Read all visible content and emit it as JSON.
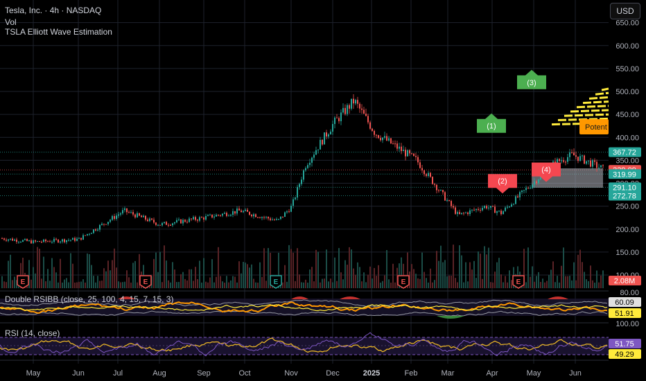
{
  "header": {
    "symbol_line": "Tesla, Inc. · 4h · NASDAQ",
    "vol_label": "Vol",
    "indicator_label": "TSLA Elliott Wave Estimation",
    "currency_button": "USD"
  },
  "colors": {
    "background": "#000000",
    "up": "#26a69a",
    "down": "#ef5350",
    "wave_green": "#4caf50",
    "wave_red": "#f44750",
    "orange": "#ff9800",
    "yellow": "#ffeb3b",
    "rsi_line": "#e6b325",
    "rsi_band": "#7e57c2"
  },
  "chart_data": [
    {
      "type": "candlestick",
      "title": "Tesla, Inc. · 4h · NASDAQ",
      "x_tick_labels": [
        "May",
        "Jun",
        "Jul",
        "Aug",
        "Sep",
        "Oct",
        "Nov",
        "Dec",
        "2025",
        "Feb",
        "Mar",
        "Apr",
        "May",
        "Jun"
      ],
      "y_tick_labels": [
        "100.00",
        "150.00",
        "200.00",
        "250.00",
        "300.00",
        "350.00",
        "400.00",
        "450.00",
        "500.00",
        "550.00",
        "600.00",
        "650.00"
      ],
      "ylim": [
        100,
        660
      ],
      "approx_close_path": [
        {
          "x": "Apr",
          "y": 180
        },
        {
          "x": "May",
          "y": 172
        },
        {
          "x": "Jun",
          "y": 178
        },
        {
          "x": "Jul",
          "y": 240
        },
        {
          "x": "Aug",
          "y": 210
        },
        {
          "x": "Sep",
          "y": 225
        },
        {
          "x": "Oct",
          "y": 240
        },
        {
          "x": "Oct",
          "y": 218
        },
        {
          "x": "Nov",
          "y": 250
        },
        {
          "x": "Nov",
          "y": 340
        },
        {
          "x": "Dec",
          "y": 430
        },
        {
          "x": "Dec",
          "y": 480
        },
        {
          "x": "2025",
          "y": 410
        },
        {
          "x": "Feb",
          "y": 350
        },
        {
          "x": "Mar",
          "y": 230
        },
        {
          "x": "Apr",
          "y": 250
        },
        {
          "x": "Apr",
          "y": 235
        },
        {
          "x": "May",
          "y": 290
        },
        {
          "x": "May",
          "y": 345
        },
        {
          "x": "Jun",
          "y": 362
        },
        {
          "x": "Jun",
          "y": 325
        }
      ],
      "price_level_lines": [
        {
          "label": "367.72",
          "value": 367.72,
          "color": "#26a69a",
          "style": "dotted"
        },
        {
          "label": "329.09",
          "value": 329.09,
          "color": "#ef5350",
          "style": "dotted"
        },
        {
          "label": "319.99",
          "value": 319.99,
          "color": "#26a69a",
          "style": "dotted"
        },
        {
          "label": "291.10",
          "value": 291.1,
          "color": "#26a69a",
          "style": "dotted"
        },
        {
          "label": "272.78",
          "value": 272.78,
          "color": "#26a69a",
          "style": "dotted"
        }
      ],
      "wave_labels": [
        {
          "label": "(1)",
          "x": "Apr",
          "y": 425,
          "color": "green"
        },
        {
          "label": "(2)",
          "x": "Apr",
          "y": 305,
          "color": "red"
        },
        {
          "label": "(3)",
          "x": "May",
          "y": 520,
          "color": "green"
        },
        {
          "label": "(4)",
          "x": "May",
          "y": 330,
          "color": "red"
        }
      ],
      "zone_label": "Potent",
      "earnings_markers": [
        "Apr",
        "Jul",
        "Oct",
        "Jan",
        "Apr"
      ],
      "volume_last_label": "2.08M"
    },
    {
      "type": "line",
      "title": "Double RSIBB (close, 25, 100, 4, 15, 7, 15, 3)",
      "y_tick_labels": [
        "80.00",
        "100.00"
      ],
      "value_labels": [
        "60.09",
        "51.91"
      ]
    },
    {
      "type": "line",
      "title": "RSI (14, close)",
      "value_labels": [
        "51.75",
        "49.29"
      ],
      "bands": [
        70,
        30
      ]
    }
  ]
}
